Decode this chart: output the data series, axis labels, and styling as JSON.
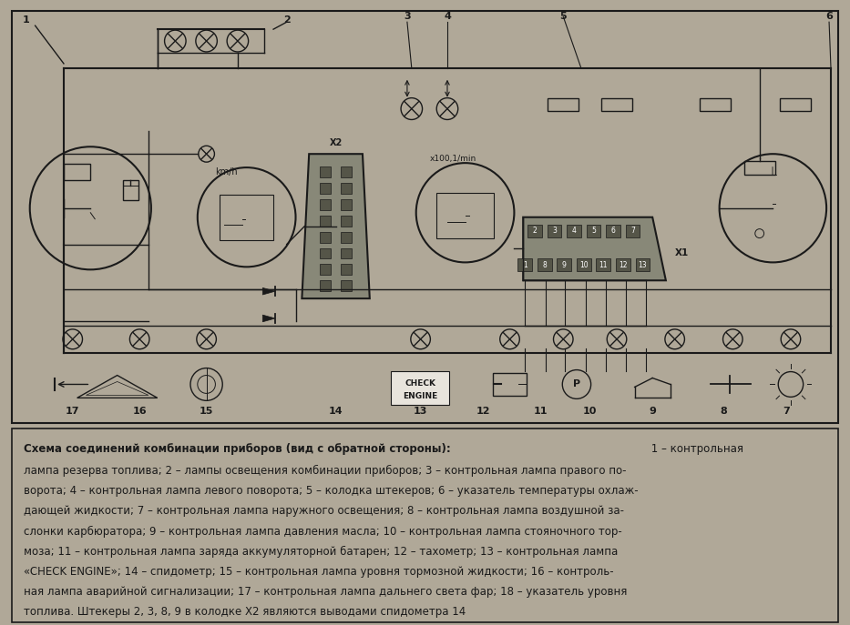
{
  "fig_width": 9.33,
  "fig_height": 6.87,
  "dpi": 100,
  "bg_color": "#b0a898",
  "diagram_bg": "#d8d4cc",
  "text_bg": "#d0ccc4",
  "line_color": "#1a1a1a",
  "title_line": "Схема соединений комбинации приборов (вид с обратной стороны): 1 – контрольная",
  "desc_lines": [
    "лампа резерва топлива; 2 – лампы освещения комбинации приборов; 3 – контрольная лампа правого по-",
    "ворота; 4 – контрольная лампа левого поворота; 5 – колодка штекеров; 6 – указатель температуры охлаж-",
    "дающей жидкости; 7 – контрольная лампа наружного освещения; 8 – контрольная лампа воздушной за-",
    "слонки карбюратора; 9 – контрольная лампа давления масла; 10 – контрольная лампа стояночного тор-",
    "моза; 11 – контрольная лампа заряда аккумуляторной батарен; 12 – тахометр; 13 – контрольная лампа",
    "«CHECK ENGINE»; 14 – спидометр; 15 – контрольная лампа уровня тормозной жидкости; 16 – контроль-",
    "ная лампа аварийной сигнализации; 17 – контрольная лампа дальнего света фар; 18 – указатель уровня",
    "топлива. Штекеры 2, 3, 8, 9 в колодке Х2 являются выводами спидометра 14"
  ]
}
